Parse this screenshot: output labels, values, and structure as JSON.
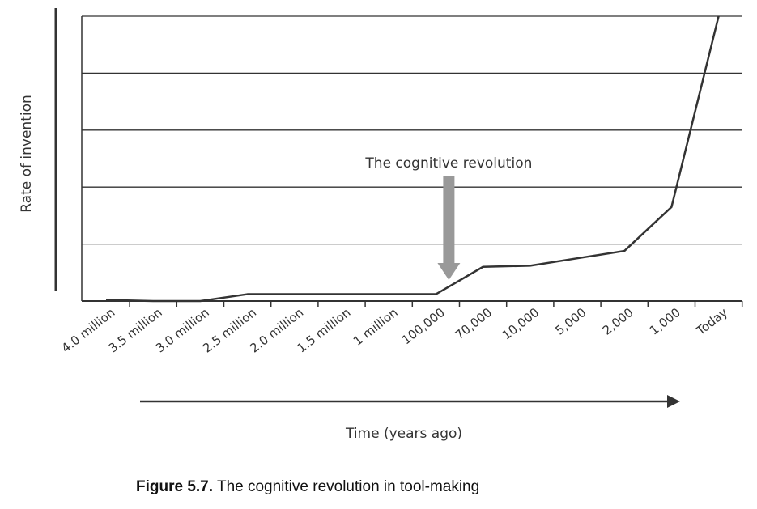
{
  "chart_data": {
    "type": "line",
    "title": "",
    "xlabel": "Time (years ago)",
    "ylabel": "Rate of invention",
    "categories": [
      "4.0 million",
      "3.5 million",
      "3.0 million",
      "2.5 million",
      "2.0 million",
      "1.5 million",
      "1 million",
      "100,000",
      "70,000",
      "10,000",
      "5,000",
      "2,000",
      "1,000",
      "Today"
    ],
    "ylim": [
      0,
      5
    ],
    "grid": true,
    "series": [
      {
        "values": [
          0.02,
          0.0,
          0.0,
          0.12,
          0.12,
          0.12,
          0.12,
          0.12,
          0.6,
          0.62,
          0.75,
          0.88,
          1.65,
          5.0
        ]
      }
    ],
    "annotations": [
      {
        "text": "The cognitive revolution",
        "at_category": "100,000"
      }
    ],
    "colors": {
      "line": "#333333",
      "grid": "#333333",
      "arrow": "#999999",
      "text": "#333333"
    }
  },
  "caption": {
    "label": "Figure 5.7.",
    "text": " The cognitive revolution in tool-making"
  }
}
